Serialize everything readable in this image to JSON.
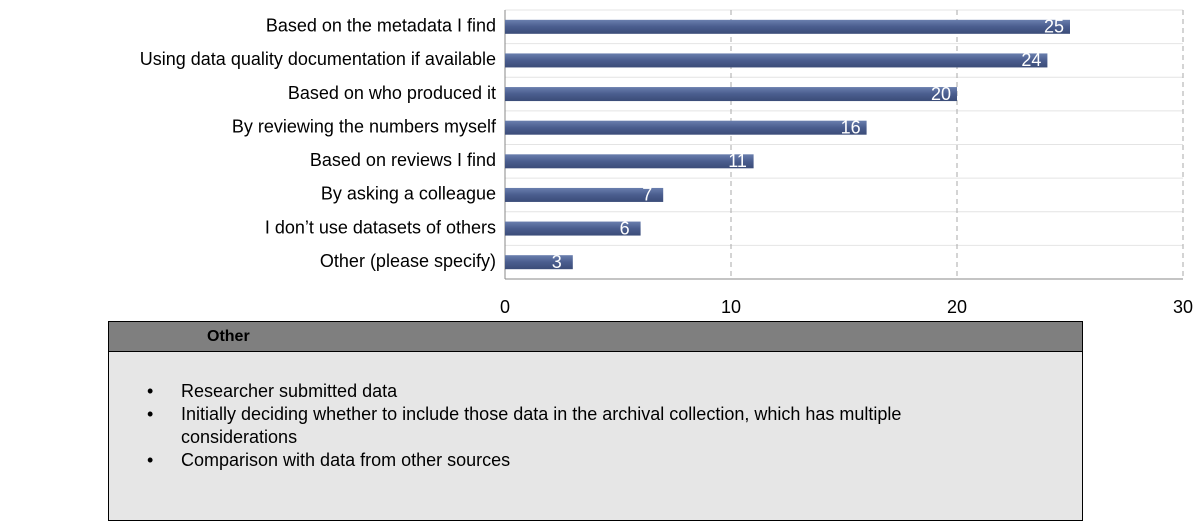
{
  "chart_data": {
    "type": "bar",
    "orientation": "horizontal",
    "categories": [
      "Based on the metadata I find",
      "Using data quality documentation if available",
      "Based on who produced it",
      "By reviewing the numbers myself",
      "Based on reviews I find",
      "By asking a colleague",
      "I don’t use datasets of others",
      "Other (please specify)"
    ],
    "values": [
      25,
      24,
      20,
      16,
      11,
      7,
      6,
      3
    ],
    "color": "#4a5d8e",
    "xlim": [
      0,
      30
    ],
    "xticks": [
      0,
      10,
      20,
      30
    ],
    "grid": true
  },
  "note": {
    "title": "Other",
    "items": [
      "Researcher submitted data",
      "Initially deciding whether to include those data in the archival collection, which has multiple considerations",
      "Comparison with data from other sources"
    ]
  }
}
